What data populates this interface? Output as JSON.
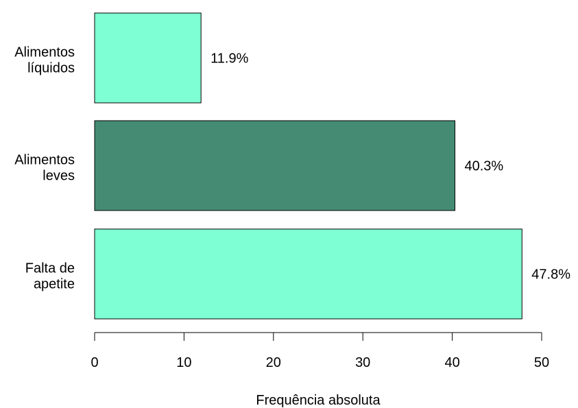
{
  "chart_data": {
    "type": "bar",
    "orientation": "horizontal",
    "categories": [
      "Falta de apetite",
      "Alimentos leves",
      "Alimentos líquidos"
    ],
    "category_label_lines": [
      [
        "Falta de",
        "apetite"
      ],
      [
        "Alimentos",
        "leves"
      ],
      [
        "Alimentos",
        "líquidos"
      ]
    ],
    "values": [
      47.8,
      40.3,
      11.9
    ],
    "data_labels": [
      "47.8%",
      "40.3%",
      "11.9%"
    ],
    "colors": [
      "#7fffd4",
      "#458b74",
      "#7fffd4"
    ],
    "title": "",
    "xlabel": "Frequência absoluta",
    "ylabel": "",
    "xlim": [
      0,
      50
    ],
    "xticks": [
      0,
      10,
      20,
      30,
      40,
      50
    ],
    "grid": false,
    "legend": "none"
  }
}
